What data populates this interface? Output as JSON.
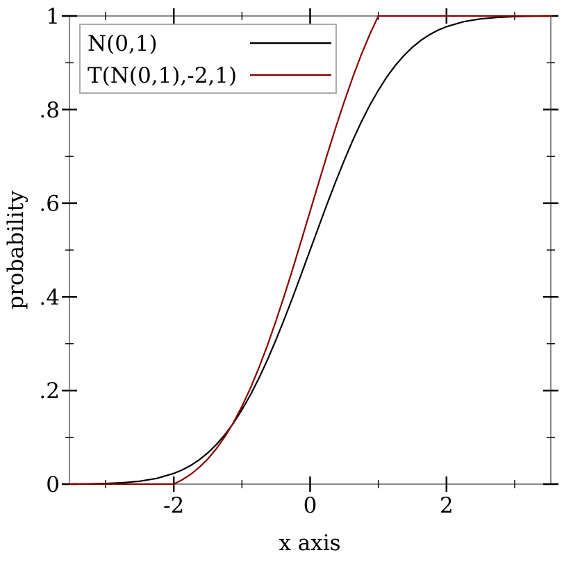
{
  "chart_data": {
    "type": "line",
    "title": "",
    "xlabel": "x axis",
    "ylabel": "probability",
    "grid": false,
    "x_axis": {
      "label": "x axis",
      "range": [
        -3.53,
        3.53
      ],
      "major_ticks": [
        {
          "value": -2,
          "label": "-2"
        },
        {
          "value": 0,
          "label": "0"
        },
        {
          "value": 2,
          "label": "2"
        }
      ],
      "minor_ticks": [
        -3,
        -1,
        1,
        3
      ]
    },
    "y_axis": {
      "label": "probability",
      "range": [
        0,
        1
      ],
      "major_ticks": [
        {
          "value": 0,
          "label": "0"
        },
        {
          "value": 0.2,
          "label": ".2"
        },
        {
          "value": 0.4,
          "label": ".4"
        },
        {
          "value": 0.6,
          "label": ".6"
        },
        {
          "value": 0.8,
          "label": ".8"
        },
        {
          "value": 1,
          "label": "1"
        }
      ],
      "minor_ticks": [
        0.1,
        0.3,
        0.5,
        0.7,
        0.9
      ]
    },
    "legend": {
      "position": "top-left",
      "entries": [
        "N(0,1)",
        "T(N(0,1),-2,1)"
      ]
    },
    "series": [
      {
        "name": "N(0,1)",
        "color": "#000000",
        "points": [
          [
            -3.53,
            0.0002
          ],
          [
            -3.25,
            0.0006
          ],
          [
            -3.0,
            0.0013
          ],
          [
            -2.75,
            0.003
          ],
          [
            -2.5,
            0.0062
          ],
          [
            -2.25,
            0.0122
          ],
          [
            -2.0,
            0.0228
          ],
          [
            -1.875,
            0.0304
          ],
          [
            -1.75,
            0.0401
          ],
          [
            -1.625,
            0.0521
          ],
          [
            -1.5,
            0.0668
          ],
          [
            -1.375,
            0.0846
          ],
          [
            -1.25,
            0.1056
          ],
          [
            -1.125,
            0.1303
          ],
          [
            -1.0,
            0.1587
          ],
          [
            -0.875,
            0.1907
          ],
          [
            -0.75,
            0.2266
          ],
          [
            -0.625,
            0.266
          ],
          [
            -0.5,
            0.3085
          ],
          [
            -0.375,
            0.3538
          ],
          [
            -0.25,
            0.4013
          ],
          [
            -0.125,
            0.4503
          ],
          [
            0,
            0.5
          ],
          [
            0.125,
            0.5497
          ],
          [
            0.25,
            0.5987
          ],
          [
            0.375,
            0.6462
          ],
          [
            0.5,
            0.6915
          ],
          [
            0.625,
            0.734
          ],
          [
            0.75,
            0.7734
          ],
          [
            0.875,
            0.8093
          ],
          [
            1.0,
            0.8413
          ],
          [
            1.125,
            0.8697
          ],
          [
            1.25,
            0.8944
          ],
          [
            1.375,
            0.9154
          ],
          [
            1.5,
            0.9332
          ],
          [
            1.625,
            0.9479
          ],
          [
            1.75,
            0.9599
          ],
          [
            1.875,
            0.9696
          ],
          [
            2.0,
            0.9772
          ],
          [
            2.25,
            0.9878
          ],
          [
            2.5,
            0.9938
          ],
          [
            2.75,
            0.997
          ],
          [
            3.0,
            0.9987
          ],
          [
            3.25,
            0.9994
          ],
          [
            3.53,
            0.9998
          ]
        ]
      },
      {
        "name": "T(N(0,1),-2,1)",
        "color": "#8b0000",
        "points": [
          [
            -3.53,
            0
          ],
          [
            -2.0,
            0
          ],
          [
            -1.875,
            0.0093
          ],
          [
            -1.75,
            0.0211
          ],
          [
            -1.625,
            0.0359
          ],
          [
            -1.5,
            0.0538
          ],
          [
            -1.375,
            0.0756
          ],
          [
            -1.25,
            0.1013
          ],
          [
            -1.125,
            0.1314
          ],
          [
            -1.0,
            0.166
          ],
          [
            -0.875,
            0.2052
          ],
          [
            -0.75,
            0.2491
          ],
          [
            -0.625,
            0.2972
          ],
          [
            -0.5,
            0.3491
          ],
          [
            -0.375,
            0.4044
          ],
          [
            -0.25,
            0.4624
          ],
          [
            -0.125,
            0.5223
          ],
          [
            0,
            0.583
          ],
          [
            0.125,
            0.6437
          ],
          [
            0.25,
            0.7036
          ],
          [
            0.375,
            0.7616
          ],
          [
            0.5,
            0.8169
          ],
          [
            0.625,
            0.8688
          ],
          [
            0.75,
            0.917
          ],
          [
            0.875,
            0.9609
          ],
          [
            1.0,
            1
          ],
          [
            3.53,
            1
          ]
        ]
      }
    ],
    "colors": {
      "background": "#ffffff",
      "frame": "#888888",
      "ticks": "#000000",
      "legend_border": "#aaaaaa"
    }
  }
}
